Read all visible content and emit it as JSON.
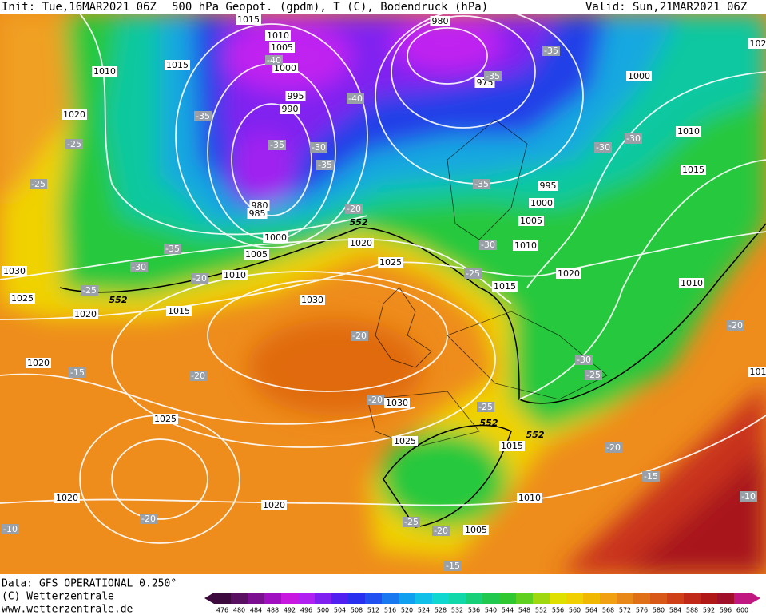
{
  "header": {
    "init": "Init: Tue,16MAR2021 06Z",
    "product": "500 hPa Geopot. (gpdm), T (C), Bodendruck (hPa)",
    "valid": "Valid: Sun,21MAR2021 06Z"
  },
  "footer": {
    "data": "Data: GFS OPERATIONAL 0.250°",
    "copyright": "(C) Wetterzentrale",
    "url": "www.wetterzentrale.de"
  },
  "legend": {
    "labels": [
      "476",
      "480",
      "484",
      "488",
      "492",
      "496",
      "500",
      "504",
      "508",
      "512",
      "516",
      "520",
      "524",
      "528",
      "532",
      "536",
      "540",
      "544",
      "548",
      "552",
      "556",
      "560",
      "564",
      "568",
      "572",
      "576",
      "580",
      "584",
      "588",
      "592",
      "596",
      "600"
    ]
  },
  "map": {
    "isobar_labels": [
      "1015",
      "1010",
      "1005",
      "1000",
      "995",
      "990",
      "980",
      "985",
      "980",
      "975",
      "1010",
      "1015",
      "1020",
      "1000",
      "1010",
      "1015",
      "995",
      "1000",
      "1005",
      "1010",
      "1000",
      "1005",
      "1010",
      "1020",
      "1025",
      "1015",
      "1020",
      "1010",
      "1030",
      "1025",
      "1020",
      "1015",
      "1030",
      "1020",
      "1025",
      "1030",
      "1025",
      "1015",
      "1020",
      "1020",
      "1010",
      "1005",
      "101",
      "102"
    ],
    "temperature_labels": [
      "-35",
      "-25",
      "-25",
      "-35",
      "-30",
      "-25",
      "-20",
      "-40",
      "-35",
      "-30",
      "-35",
      "-40",
      "-20",
      "-35",
      "-35",
      "-30",
      "-30",
      "-35",
      "-30",
      "-25",
      "-20",
      "-20",
      "-15",
      "-20",
      "-25",
      "-30",
      "-25",
      "-20",
      "-20",
      "-15",
      "-10",
      "-10",
      "-20",
      "-25",
      "-20",
      "-15"
    ],
    "geopotential_labels": [
      "552",
      "552",
      "552",
      "552"
    ]
  }
}
